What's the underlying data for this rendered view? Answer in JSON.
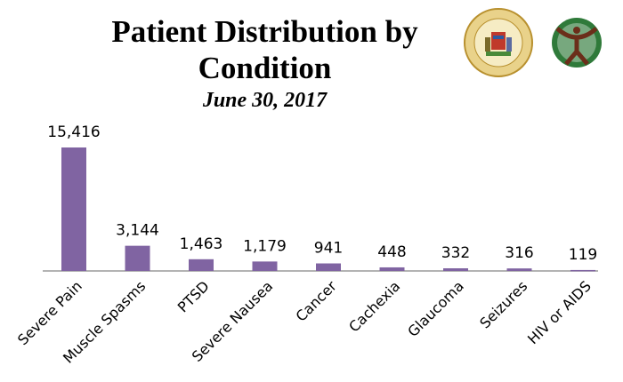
{
  "chart_data": {
    "type": "bar",
    "title": "Patient Distribution by Condition",
    "title_lines": [
      "Patient Distribution by",
      "Condition"
    ],
    "subtitle": "June 30, 2017",
    "categories": [
      "Severe Pain",
      "Muscle Spasms",
      "PTSD",
      "Severe Nausea",
      "Cancer",
      "Cachexia",
      "Glaucoma",
      "Seizures",
      "HIV or AIDS"
    ],
    "values": [
      15416,
      3144,
      1463,
      1179,
      941,
      448,
      332,
      316,
      119
    ],
    "data_labels": [
      "15,416",
      "3,144",
      "1,463",
      "1,179",
      "941",
      "448",
      "332",
      "316",
      "119"
    ],
    "xlabel": "",
    "ylabel": "",
    "ylim": [
      0,
      15416
    ],
    "grid": false,
    "bar_color": "#8064a2"
  },
  "logos": {
    "seal_left": "STATE OF HAWAII 1959",
    "seal_right": "HAWAII STATE DEPARTMENT OF HEALTH"
  }
}
